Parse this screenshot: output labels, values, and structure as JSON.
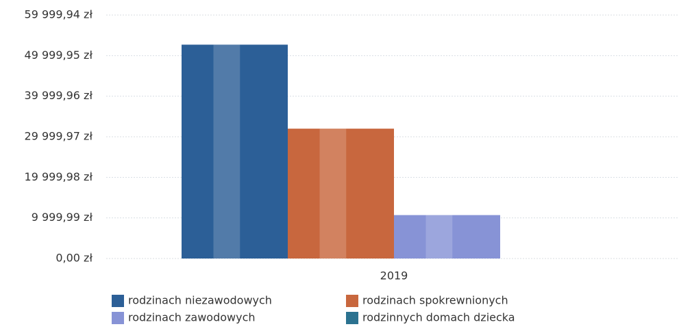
{
  "chart_data": {
    "type": "bar",
    "categories": [
      "2019"
    ],
    "series": [
      {
        "name": "rodzinach niezawodowych",
        "color": "#2c5f97",
        "values": [
          52700
        ]
      },
      {
        "name": "rodzinach spokrewnionych",
        "color": "#c8673e",
        "values": [
          32000
        ]
      },
      {
        "name": "rodzinach zawodowych",
        "color": "#8793d6",
        "values": [
          10700
        ]
      },
      {
        "name": "rodzinnych domach dziecka",
        "color": "#2b7290",
        "values": [
          0
        ]
      }
    ],
    "ylim": [
      0,
      59999.94
    ],
    "yticks": [
      {
        "value": 0,
        "label": "0,00 zł"
      },
      {
        "value": 9999.99,
        "label": "9 999,99 zł"
      },
      {
        "value": 19999.98,
        "label": "19 999,98 zł"
      },
      {
        "value": 29999.97,
        "label": "29 999,97 zł"
      },
      {
        "value": 39999.96,
        "label": "39 999,96 zł"
      },
      {
        "value": 49999.95,
        "label": "49 999,95 zł"
      },
      {
        "value": 59999.94,
        "label": "59 999,94 zł"
      }
    ],
    "grid": true
  }
}
